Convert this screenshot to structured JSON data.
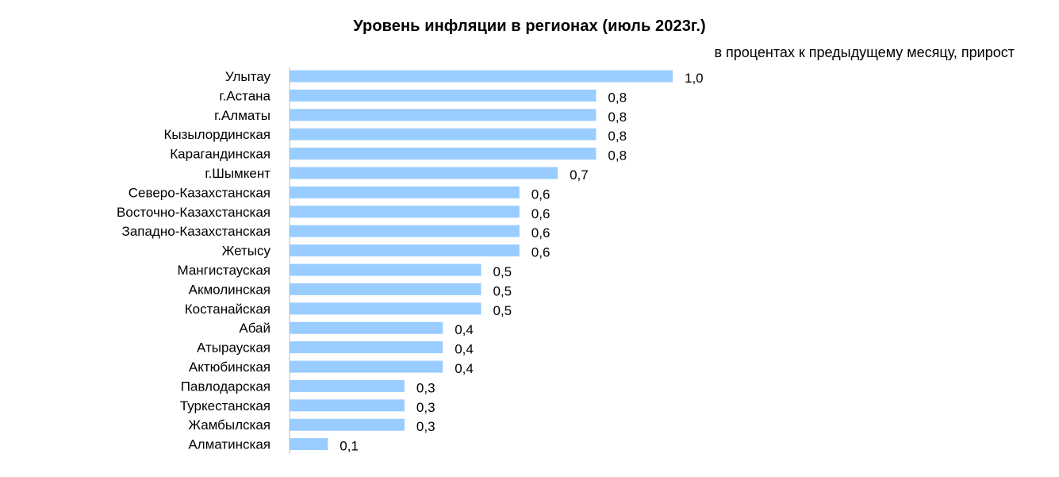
{
  "chart_data": {
    "type": "bar",
    "orientation": "horizontal",
    "title": "Уровень инфляции в регионах (июль 2023г.)",
    "subtitle": "в процентах к предыдущему месяцу, прирост",
    "categories": [
      "Улытау",
      "г.Астана",
      "г.Алматы",
      "Кызылординская",
      "Карагандинская",
      "г.Шымкент",
      "Северо-Казахстанская",
      "Восточно-Казахстанская",
      "Западно-Казахстанская",
      "Жетысу",
      "Мангистауская",
      "Акмолинская",
      "Костанайская",
      "Абай",
      "Атырауская",
      "Актюбинская",
      "Павлодарская",
      "Туркестанская",
      "Жамбылская",
      "Алматинская"
    ],
    "values": [
      1.0,
      0.8,
      0.8,
      0.8,
      0.8,
      0.7,
      0.6,
      0.6,
      0.6,
      0.6,
      0.5,
      0.5,
      0.5,
      0.4,
      0.4,
      0.4,
      0.3,
      0.3,
      0.3,
      0.1
    ],
    "value_labels": [
      "1,0",
      "0,8",
      "0,8",
      "0,8",
      "0,8",
      "0,7",
      "0,6",
      "0,6",
      "0,6",
      "0,6",
      "0,5",
      "0,5",
      "0,5",
      "0,4",
      "0,4",
      "0,4",
      "0,3",
      "0,3",
      "0,3",
      "0,1"
    ],
    "xlim": [
      0,
      1.0
    ],
    "grid": false,
    "legend": "none",
    "bar_color": "#99ccff"
  }
}
